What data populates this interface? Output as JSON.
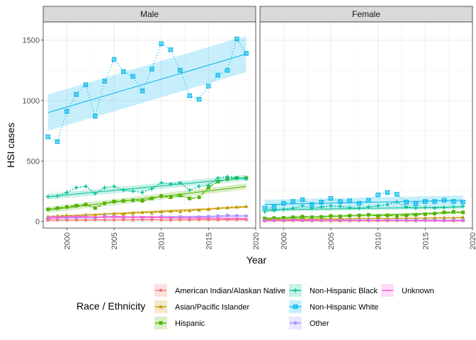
{
  "chart_data": {
    "type": "line",
    "xlabel": "Year",
    "ylabel": "HSI cases",
    "xlim": [
      1997.5,
      2020
    ],
    "ylim": [
      -55,
      1650
    ],
    "x_ticks": [
      2000,
      2005,
      2010,
      2015,
      2020
    ],
    "y_ticks": [
      0,
      500,
      1000,
      1500
    ],
    "grid": true,
    "legend_title": "Race / Ethnicity",
    "legend_position": "bottom",
    "panels": [
      {
        "label": "Male",
        "series": [
          {
            "name": "American Indian/Alaskan Native",
            "color": "#F8766D",
            "x": [
              1998,
              1999,
              2000,
              2001,
              2002,
              2003,
              2004,
              2005,
              2006,
              2007,
              2008,
              2009,
              2010,
              2011,
              2012,
              2013,
              2014,
              2015,
              2016,
              2017,
              2018,
              2019
            ],
            "y": [
              10,
              12,
              11,
              13,
              12,
              14,
              13,
              12,
              14,
              13,
              15,
              14,
              13,
              12,
              14,
              13,
              15,
              14,
              13,
              14,
              15,
              14
            ],
            "trend": [
              11,
              14
            ],
            "band": 5
          },
          {
            "name": "Asian/Pacific Islander",
            "color": "#C49A00",
            "x": [
              1998,
              1999,
              2000,
              2001,
              2002,
              2003,
              2004,
              2005,
              2006,
              2007,
              2008,
              2009,
              2010,
              2011,
              2012,
              2013,
              2014,
              2015,
              2016,
              2017,
              2018,
              2019
            ],
            "y": [
              40,
              45,
              50,
              48,
              55,
              52,
              60,
              65,
              62,
              70,
              75,
              72,
              80,
              85,
              82,
              90,
              95,
              100,
              110,
              115,
              120,
              125
            ],
            "trend": [
              38,
              120
            ],
            "band": 10
          },
          {
            "name": "Hispanic",
            "color": "#53B400",
            "x": [
              1998,
              1999,
              2000,
              2001,
              2002,
              2003,
              2004,
              2005,
              2006,
              2007,
              2008,
              2009,
              2010,
              2011,
              2012,
              2013,
              2014,
              2015,
              2016,
              2017,
              2018,
              2019
            ],
            "y": [
              100,
              110,
              120,
              130,
              140,
              110,
              150,
              165,
              170,
              175,
              170,
              190,
              210,
              200,
              215,
              190,
              200,
              280,
              330,
              350,
              360,
              360
            ],
            "trend": [
              95,
              290
            ],
            "band": 25
          },
          {
            "name": "Non-Hispanic Black",
            "color": "#00C094",
            "x": [
              1998,
              1999,
              2000,
              2001,
              2002,
              2003,
              2004,
              2005,
              2006,
              2007,
              2008,
              2009,
              2010,
              2011,
              2012,
              2013,
              2014,
              2015,
              2016,
              2017,
              2018,
              2019
            ],
            "y": [
              205,
              210,
              240,
              280,
              290,
              230,
              280,
              290,
              260,
              250,
              240,
              270,
              320,
              310,
              320,
              260,
              290,
              300,
              360,
              370,
              360,
              350
            ],
            "trend": [
              205,
              360
            ],
            "band": 25
          },
          {
            "name": "Non-Hispanic White",
            "color": "#00B6EB",
            "x": [
              1998,
              1999,
              2000,
              2001,
              2002,
              2003,
              2004,
              2005,
              2006,
              2007,
              2008,
              2009,
              2010,
              2011,
              2012,
              2013,
              2014,
              2015,
              2016,
              2017,
              2018,
              2019
            ],
            "y": [
              700,
              660,
              910,
              1050,
              1130,
              870,
              1160,
              1340,
              1240,
              1200,
              1080,
              1260,
              1470,
              1420,
              1250,
              1040,
              1010,
              1120,
              1210,
              1250,
              1510,
              1390
            ],
            "trend": [
              900,
              1385
            ],
            "band": 150
          },
          {
            "name": "Other",
            "color": "#A58AFF",
            "x": [
              1998,
              1999,
              2000,
              2001,
              2002,
              2003,
              2004,
              2005,
              2006,
              2007,
              2008,
              2009,
              2010,
              2011,
              2012,
              2013,
              2014,
              2015,
              2016,
              2017,
              2018,
              2019
            ],
            "y": [
              25,
              30,
              28,
              35,
              40,
              30,
              45,
              40,
              35,
              38,
              30,
              35,
              40,
              32,
              38,
              30,
              35,
              40,
              45,
              50,
              48,
              45
            ],
            "trend": [
              28,
              45
            ],
            "band": 8
          },
          {
            "name": "Unknown",
            "color": "#FB61D7",
            "x": [
              1998,
              1999,
              2000,
              2001,
              2002,
              2003,
              2004,
              2005,
              2006,
              2007,
              2008,
              2009,
              2010,
              2011,
              2012,
              2013,
              2014,
              2015,
              2016,
              2017,
              2018,
              2019
            ],
            "y": [
              20,
              30,
              40,
              45,
              40,
              35,
              38,
              42,
              40,
              35,
              40,
              38,
              35,
              30,
              32,
              28,
              30,
              25,
              28,
              22,
              25,
              20
            ],
            "trend": [
              38,
              25
            ],
            "band": 8
          }
        ]
      },
      {
        "label": "Female",
        "series": [
          {
            "name": "American Indian/Alaskan Native",
            "color": "#F8766D",
            "x": [
              1998,
              1999,
              2000,
              2001,
              2002,
              2003,
              2004,
              2005,
              2006,
              2007,
              2008,
              2009,
              2010,
              2011,
              2012,
              2013,
              2014,
              2015,
              2016,
              2017,
              2018,
              2019
            ],
            "y": [
              5,
              6,
              5,
              7,
              6,
              5,
              7,
              6,
              5,
              6,
              7,
              6,
              5,
              6,
              7,
              6,
              5,
              6,
              7,
              6,
              5,
              6
            ],
            "trend": [
              5,
              6
            ],
            "band": 3
          },
          {
            "name": "Asian/Pacific Islander",
            "color": "#C49A00",
            "x": [
              1998,
              1999,
              2000,
              2001,
              2002,
              2003,
              2004,
              2005,
              2006,
              2007,
              2008,
              2009,
              2010,
              2011,
              2012,
              2013,
              2014,
              2015,
              2016,
              2017,
              2018,
              2019
            ],
            "y": [
              15,
              18,
              20,
              18,
              22,
              20,
              25,
              22,
              24,
              22,
              25,
              24,
              26,
              22,
              25,
              24,
              26,
              28,
              30,
              32,
              30,
              35
            ],
            "trend": [
              16,
              30
            ],
            "band": 5
          },
          {
            "name": "Hispanic",
            "color": "#53B400",
            "x": [
              1998,
              1999,
              2000,
              2001,
              2002,
              2003,
              2004,
              2005,
              2006,
              2007,
              2008,
              2009,
              2010,
              2011,
              2012,
              2013,
              2014,
              2015,
              2016,
              2017,
              2018,
              2019
            ],
            "y": [
              25,
              28,
              30,
              35,
              40,
              35,
              38,
              45,
              42,
              48,
              50,
              55,
              45,
              50,
              45,
              50,
              55,
              60,
              65,
              75,
              80,
              75
            ],
            "trend": [
              25,
              75
            ],
            "band": 10
          },
          {
            "name": "Non-Hispanic Black",
            "color": "#00C094",
            "x": [
              1998,
              1999,
              2000,
              2001,
              2002,
              2003,
              2004,
              2005,
              2006,
              2007,
              2008,
              2009,
              2010,
              2011,
              2012,
              2013,
              2014,
              2015,
              2016,
              2017,
              2018,
              2019
            ],
            "y": [
              80,
              90,
              100,
              110,
              130,
              110,
              120,
              130,
              125,
              115,
              110,
              120,
              130,
              140,
              160,
              120,
              110,
              115,
              110,
              115,
              120,
              125
            ],
            "trend": [
              95,
              120
            ],
            "band": 15
          },
          {
            "name": "Non-Hispanic White",
            "color": "#00B6EB",
            "x": [
              1998,
              1999,
              2000,
              2001,
              2002,
              2003,
              2004,
              2005,
              2006,
              2007,
              2008,
              2009,
              2010,
              2011,
              2012,
              2013,
              2014,
              2015,
              2016,
              2017,
              2018,
              2019
            ],
            "y": [
              110,
              120,
              150,
              165,
              180,
              140,
              160,
              190,
              165,
              170,
              150,
              175,
              220,
              240,
              225,
              160,
              145,
              165,
              165,
              175,
              165,
              160
            ],
            "trend": [
              140,
              175
            ],
            "band": 40
          },
          {
            "name": "Other",
            "color": "#A58AFF",
            "x": [
              1998,
              1999,
              2000,
              2001,
              2002,
              2003,
              2004,
              2005,
              2006,
              2007,
              2008,
              2009,
              2010,
              2011,
              2012,
              2013,
              2014,
              2015,
              2016,
              2017,
              2018,
              2019
            ],
            "y": [
              8,
              10,
              9,
              11,
              10,
              12,
              11,
              10,
              12,
              11,
              10,
              12,
              11,
              10,
              12,
              11,
              10,
              12,
              11,
              10,
              12,
              11
            ],
            "trend": [
              9,
              11
            ],
            "band": 4
          },
          {
            "name": "Unknown",
            "color": "#FB61D7",
            "x": [
              1998,
              1999,
              2000,
              2001,
              2002,
              2003,
              2004,
              2005,
              2006,
              2007,
              2008,
              2009,
              2010,
              2011,
              2012,
              2013,
              2014,
              2015,
              2016,
              2017,
              2018,
              2019
            ],
            "y": [
              5,
              7,
              8,
              10,
              12,
              10,
              11,
              9,
              10,
              8,
              9,
              8,
              7,
              9,
              8,
              6,
              7,
              6,
              5,
              6,
              5,
              6
            ],
            "trend": [
              9,
              6
            ],
            "band": 4
          }
        ]
      }
    ]
  }
}
